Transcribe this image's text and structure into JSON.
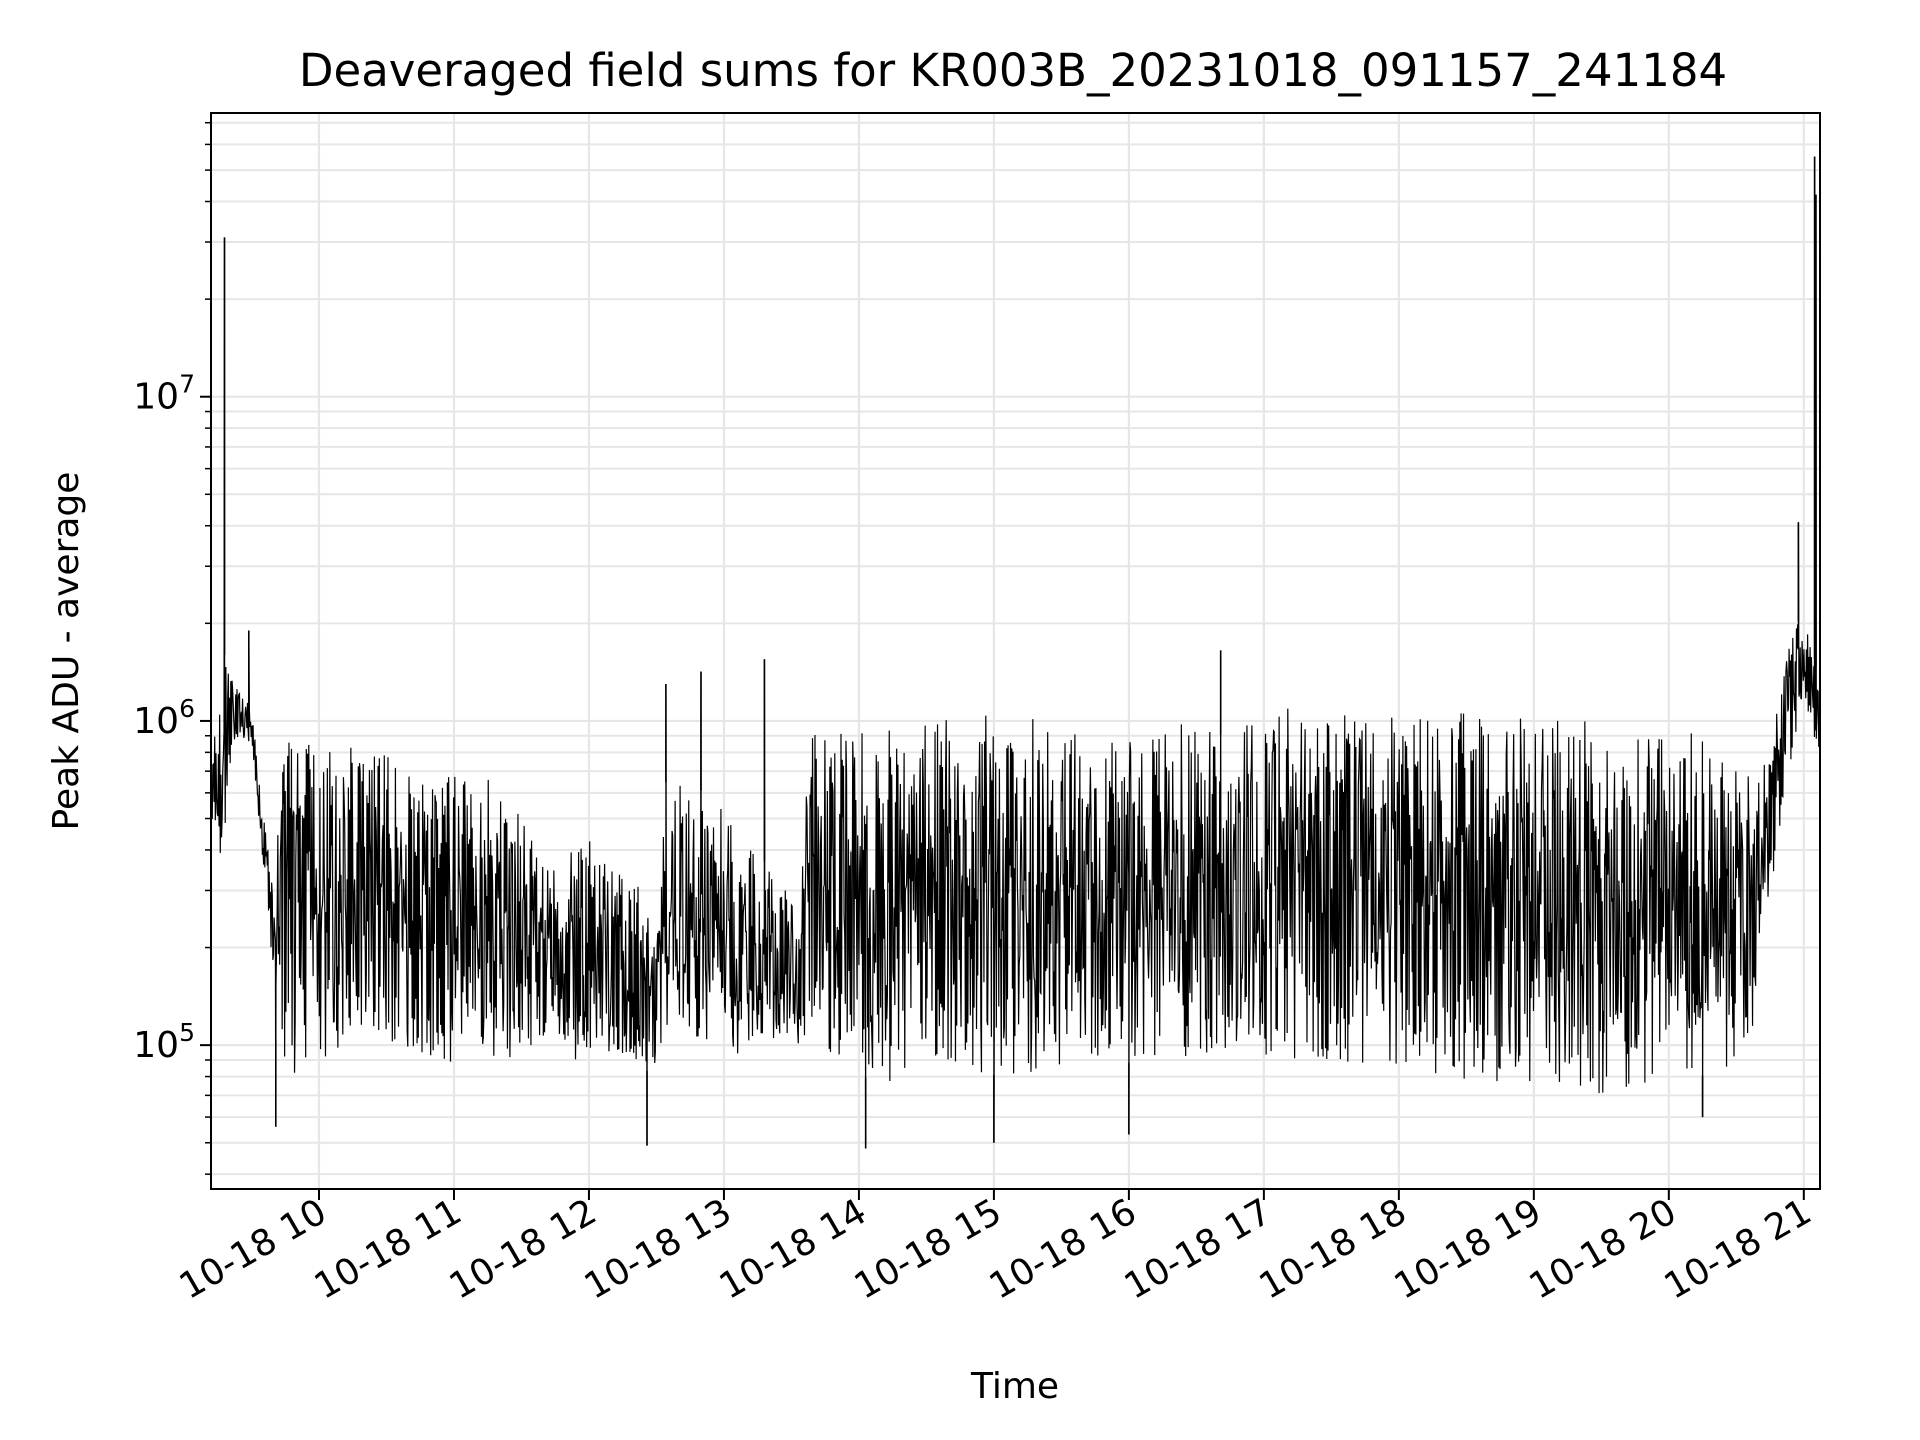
{
  "chart_data": {
    "type": "line",
    "title": "Deaveraged field sums for KR003B_20231018_091157_241184",
    "xlabel": "Time",
    "ylabel": "Peak ADU - average",
    "yscale": "log",
    "ylim": [
      36000,
      75000000
    ],
    "xlim_hours": [
      9.2,
      21.12
    ],
    "grid": true,
    "line_color": "#000000",
    "x_ticks": [
      {
        "hour": 10,
        "label": "10-18 10"
      },
      {
        "hour": 11,
        "label": "10-18 11"
      },
      {
        "hour": 12,
        "label": "10-18 12"
      },
      {
        "hour": 13,
        "label": "10-18 13"
      },
      {
        "hour": 14,
        "label": "10-18 14"
      },
      {
        "hour": 15,
        "label": "10-18 15"
      },
      {
        "hour": 16,
        "label": "10-18 16"
      },
      {
        "hour": 17,
        "label": "10-18 17"
      },
      {
        "hour": 18,
        "label": "10-18 18"
      },
      {
        "hour": 19,
        "label": "10-18 19"
      },
      {
        "hour": 20,
        "label": "10-18 20"
      },
      {
        "hour": 21,
        "label": "10-18 21"
      }
    ],
    "y_ticks": [
      {
        "value": 100000,
        "base": "10",
        "exp": "5"
      },
      {
        "value": 1000000,
        "base": "10",
        "exp": "6"
      },
      {
        "value": 10000000,
        "base": "10",
        "exp": "7"
      }
    ],
    "series": [
      {
        "name": "Deaveraged field sum",
        "envelope": {
          "x": [
            9.2,
            9.3,
            9.35,
            9.5,
            9.65,
            9.7,
            10.0,
            10.3,
            10.6,
            10.9,
            11.2,
            11.5,
            11.7,
            11.9,
            12.2,
            12.5,
            12.55,
            12.9,
            13.2,
            13.55,
            13.6,
            14.0,
            14.4,
            14.8,
            15.2,
            15.6,
            16.0,
            16.4,
            16.7,
            17.0,
            17.4,
            17.8,
            18.2,
            18.6,
            19.0,
            19.4,
            19.8,
            20.2,
            20.6,
            20.75,
            20.85,
            21.0,
            21.05,
            21.1,
            21.12
          ],
          "low": [
            400000,
            380000,
            800000,
            850000,
            170000,
            75000,
            85000,
            110000,
            95000,
            80000,
            95000,
            85000,
            110000,
            90000,
            95000,
            80000,
            110000,
            100000,
            90000,
            95000,
            100000,
            80000,
            75000,
            80000,
            82000,
            85000,
            88000,
            90000,
            85000,
            90000,
            88000,
            85000,
            80000,
            75000,
            72000,
            70000,
            75000,
            80000,
            85000,
            280000,
            550000,
            1200000,
            1000000,
            800000,
            700000
          ],
          "high": [
            800000,
            1600000,
            1400000,
            1100000,
            320000,
            900000,
            850000,
            850000,
            750000,
            650000,
            800000,
            500000,
            350000,
            500000,
            350000,
            280000,
            650000,
            600000,
            400000,
            300000,
            900000,
            950000,
            1000000,
            1050000,
            1050000,
            1000000,
            950000,
            1000000,
            900000,
            1150000,
            1100000,
            1050000,
            1100000,
            1050000,
            1050000,
            1000000,
            900000,
            950000,
            700000,
            800000,
            1600000,
            2200000,
            1800000,
            1400000,
            1200000
          ]
        },
        "spikes": [
          {
            "hour": 9.3,
            "value": 31000000
          },
          {
            "hour": 9.48,
            "value": 1900000
          },
          {
            "hour": 12.57,
            "value": 1300000
          },
          {
            "hour": 12.83,
            "value": 1420000
          },
          {
            "hour": 13.3,
            "value": 1550000
          },
          {
            "hour": 16.68,
            "value": 1650000
          },
          {
            "hour": 20.96,
            "value": 4100000
          },
          {
            "hour": 21.08,
            "value": 55000000
          },
          {
            "hour": 21.09,
            "value": 42000000
          }
        ],
        "dips": [
          {
            "hour": 9.68,
            "value": 56000
          },
          {
            "hour": 12.43,
            "value": 49000
          },
          {
            "hour": 14.05,
            "value": 48000
          },
          {
            "hour": 15.0,
            "value": 50000
          },
          {
            "hour": 16.0,
            "value": 53000
          },
          {
            "hour": 20.25,
            "value": 60000
          }
        ]
      }
    ]
  }
}
